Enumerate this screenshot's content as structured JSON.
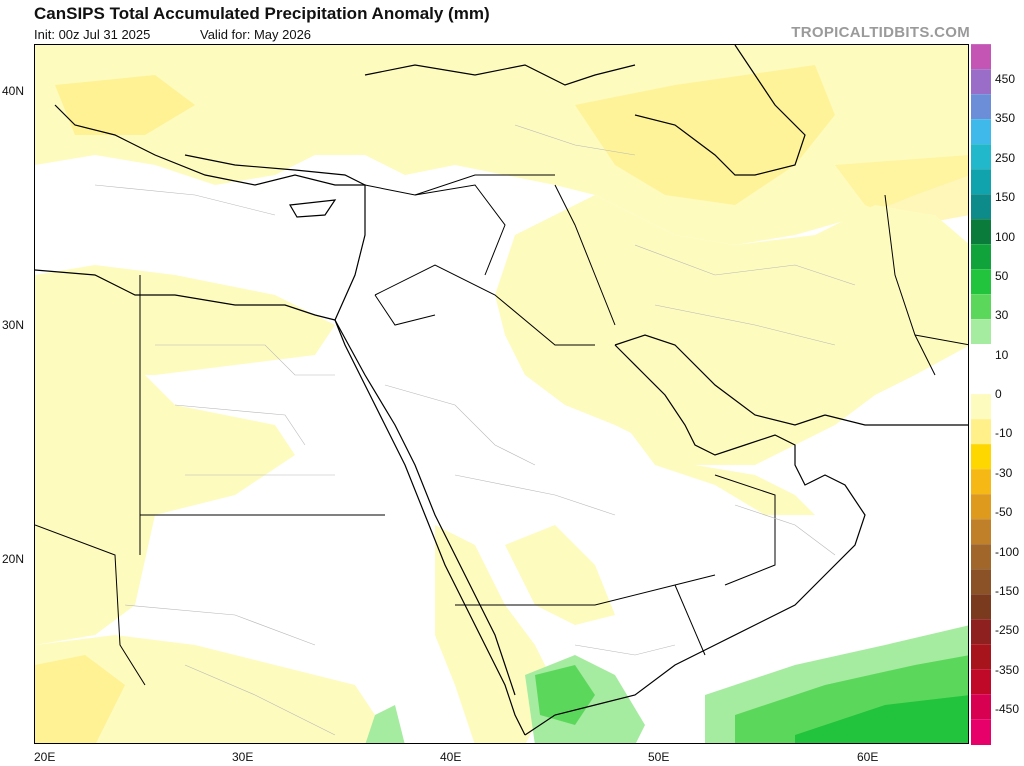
{
  "header": {
    "title": "CanSIPS Total Accumulated Precipitation Anomaly (mm)",
    "init": "Init: 00z Jul 31 2025",
    "valid": "Valid for: May 2026",
    "brand": "TROPICALTIDBITS.COM"
  },
  "map": {
    "lat_labels": [
      "40N",
      "30N",
      "20N"
    ],
    "lon_labels": [
      "20E",
      "30E",
      "40E",
      "50E",
      "60E"
    ],
    "lat_values": [
      40,
      30,
      20
    ],
    "lon_values": [
      20,
      30,
      40,
      50,
      60
    ],
    "extent": {
      "lon_min": 20,
      "lon_max": 65,
      "lat_min": 12,
      "lat_max": 42
    }
  },
  "colorbar": {
    "labels": [
      "450",
      "350",
      "250",
      "150",
      "100",
      "50",
      "30",
      "10",
      "0",
      "-10",
      "-30",
      "-50",
      "-100",
      "-150",
      "-250",
      "-350",
      "-450"
    ],
    "colors": [
      "#c455b5",
      "#9a6ec8",
      "#6c8ed8",
      "#3fb8ea",
      "#22b8cc",
      "#11a3ad",
      "#0d8a8a",
      "#0b7b3b",
      "#11a33b",
      "#22c43e",
      "#5bd85c",
      "#a6eca0",
      "#ffffff",
      "#ffffff",
      "#fefbbf",
      "#fff08a",
      "#ffd700",
      "#f6b814",
      "#de9a1c",
      "#c0802a",
      "#a0662a",
      "#8a5226",
      "#7a3a1e",
      "#8e2020",
      "#a8141c",
      "#c00828",
      "#d80050",
      "#e8006a"
    ]
  }
}
